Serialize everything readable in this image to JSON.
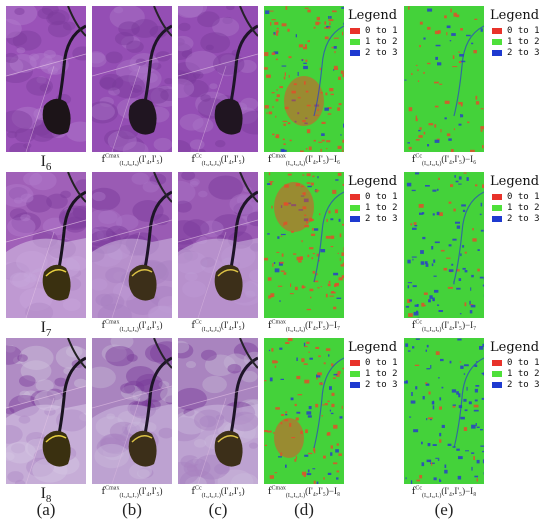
{
  "figure": {
    "column_labels": [
      "(a)",
      "(b)",
      "(c)",
      "(d)",
      "(e)"
    ],
    "rows": [
      {
        "captions": [
          "I",
          "f",
          "f",
          "f",
          "f"
        ],
        "caption_subs": [
          "6",
          "(I₅,I₆,I₈)",
          "(I₅,I₆,I₈)",
          "(I₅,I₆,I₈)",
          "(I₅,I₆,I₈)"
        ],
        "caption_sups": [
          "",
          "Cmax",
          "Cc",
          "Cmax",
          "Cc"
        ],
        "caption_tails": [
          "",
          "(I'₄,I'₅)",
          "(I'₄,I'₅)",
          "(I'₄,I'₅)−I₆",
          "(I'₄,I'₅)−I₆"
        ]
      },
      {
        "captions": [
          "I",
          "f",
          "f",
          "f",
          "f"
        ],
        "caption_subs": [
          "7",
          "(I₅,I₆,I₈)",
          "(I₅,I₆,I₈)",
          "(I₅,I₆,I₈)",
          "(I₅,I₆,I₈)"
        ],
        "caption_sups": [
          "",
          "Cmax",
          "Cc",
          "Cmax",
          "Cc"
        ],
        "caption_tails": [
          "",
          "(I'₄,I'₅)",
          "(I'₄,I'₅)",
          "(I'₄,I'₅)−I₇",
          "(I'₄,I'₅)−I₇"
        ]
      },
      {
        "captions": [
          "I",
          "f",
          "f",
          "f",
          "f"
        ],
        "caption_subs": [
          "8",
          "(I₅,I₆,I₇)",
          "(I₅,I₆,I₇)",
          "(I₅,I₆,I₇)",
          "(I₅,I₆,I₇)"
        ],
        "caption_sups": [
          "",
          "Cmax",
          "Cc",
          "Cmax",
          "Cc"
        ],
        "caption_tails": [
          "",
          "(I'₄,I'₅)",
          "(I'₄,I'₅)",
          "(I'₄,I'₅)−I₈",
          "(I'₄,I'₅)−I₈"
        ]
      }
    ],
    "legend": {
      "title": "Legend",
      "items": [
        {
          "label": "0 to 1",
          "color": "#e8322a"
        },
        {
          "label": "1 to 2",
          "color": "#4ee03a"
        },
        {
          "label": "2 to 3",
          "color": "#1e3ad0"
        }
      ]
    },
    "colors": {
      "satellite_purple": "#9a52b8",
      "satellite_dark": "#2a1a22",
      "satellite_light": "#d8c8e8",
      "map_green": "#44d23a",
      "map_red": "#e0502a",
      "map_blue": "#2840c8"
    }
  }
}
